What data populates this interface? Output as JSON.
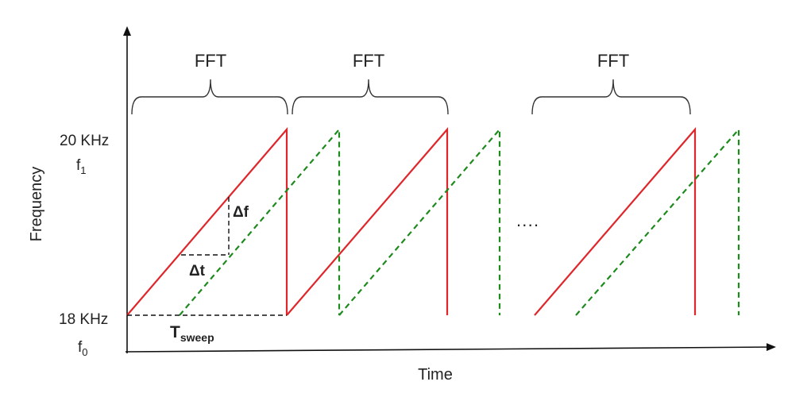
{
  "axes": {
    "x_label": "Time",
    "y_label": "Frequency"
  },
  "levels": {
    "top_value": "20 KHz",
    "top_symbol": "f",
    "top_symbol_sub": "1",
    "bottom_value": "18 KHz",
    "bottom_symbol": "f",
    "bottom_symbol_sub": "0"
  },
  "fft_windows": [
    "FFT",
    "FFT",
    "FFT"
  ],
  "annotations": {
    "delta_f": "Δf",
    "delta_t": "Δt",
    "t_sweep_main": "T",
    "t_sweep_sub": "sweep",
    "ellipsis": "····"
  },
  "colors": {
    "transmitted": "#e0262a",
    "received": "#1e8a1e",
    "axis": "#111111"
  }
}
